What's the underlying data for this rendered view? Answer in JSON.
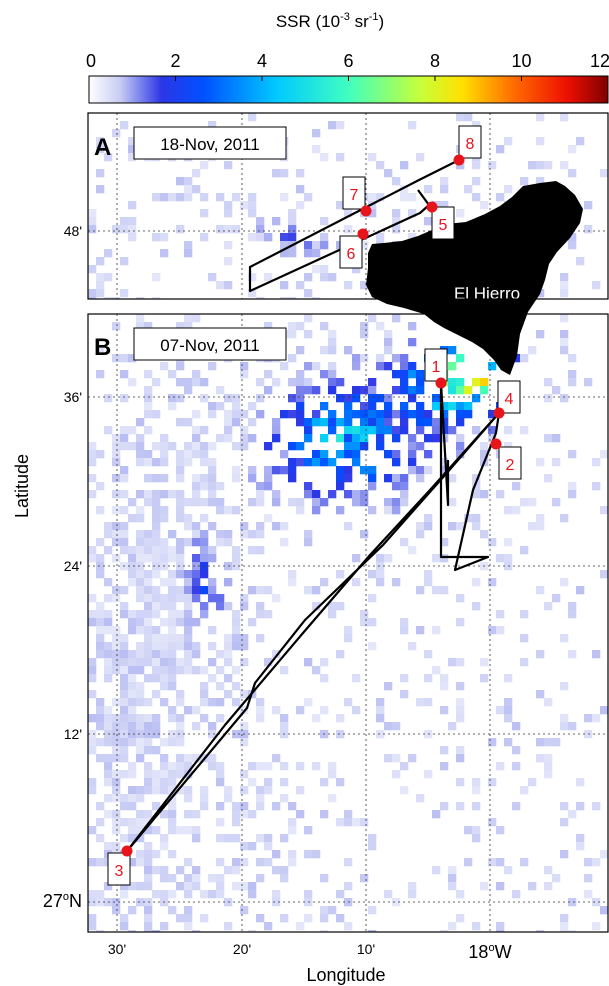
{
  "chart_data": {
    "type": "heatmap",
    "title": "",
    "colorbar": {
      "label": "SSR (10",
      "label_exp": "-3",
      "label_unit": " sr",
      "label_unit_exp": "-1",
      "label_close": ")",
      "ticks": [
        "0",
        "2",
        "4",
        "6",
        "8",
        "10",
        "12"
      ],
      "range": [
        0,
        12
      ],
      "colormap": "jet, low end fading to white"
    },
    "xlabel": "Longitude",
    "ylabel": "Latitude",
    "x_ticks": [
      "30'",
      "20'",
      "10'"
    ],
    "x_tick_main": "18",
    "x_tick_main_deg": "o",
    "x_tick_main_dir": "W",
    "y_ticks_b": [
      "36'",
      "24'",
      "12'"
    ],
    "y_tick_main": "27",
    "y_tick_main_deg": "o",
    "y_tick_main_dir": "N",
    "y_ticks_a": [
      "48'"
    ],
    "grid": true,
    "island_label": "El Hierro",
    "panels": [
      {
        "id": "A",
        "date": "18-Nov, 2011",
        "stations": [
          "5",
          "6",
          "7",
          "8"
        ]
      },
      {
        "id": "B",
        "date": "07-Nov, 2011",
        "stations": [
          "1",
          "2",
          "3",
          "4"
        ]
      }
    ]
  }
}
